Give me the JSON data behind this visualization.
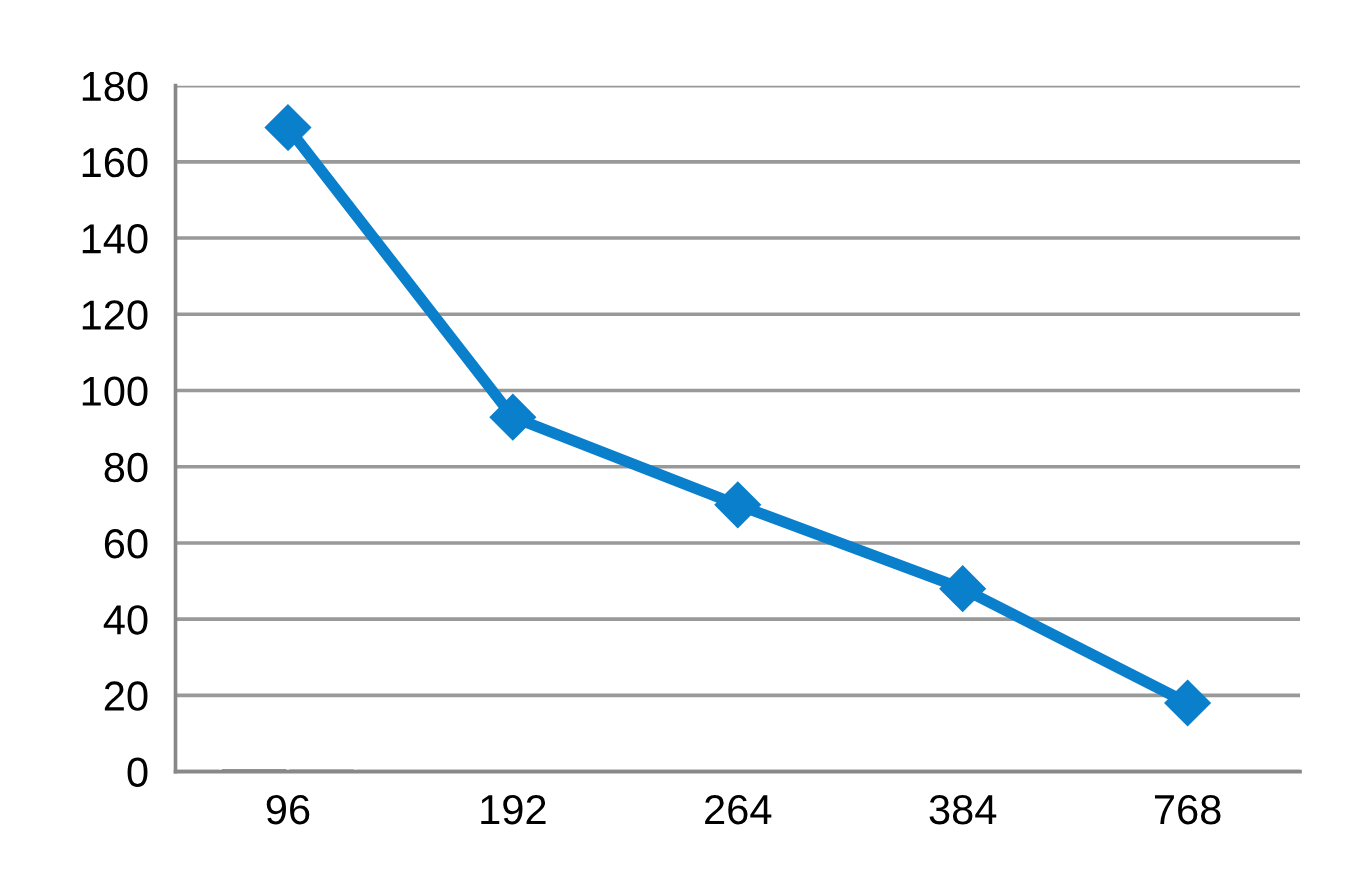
{
  "chart_data": {
    "type": "line",
    "categories": [
      "96",
      "192",
      "264",
      "384",
      "768"
    ],
    "series": [
      {
        "type": "bar",
        "color": "#c0504d",
        "values": [
          1,
          null,
          null,
          null,
          null
        ]
      },
      {
        "type": "bar",
        "color": "#9bbb59",
        "values": [
          1,
          null,
          null,
          null,
          null
        ]
      },
      {
        "color": "#0a7fcc",
        "values": [
          169,
          93,
          70,
          48,
          18
        ],
        "marker": "diamond",
        "line_style": "solid"
      }
    ],
    "ylim": [
      0,
      180
    ],
    "yticks": [
      0,
      20,
      40,
      60,
      80,
      100,
      120,
      140,
      160,
      180
    ],
    "grid": "y",
    "legend": false
  }
}
